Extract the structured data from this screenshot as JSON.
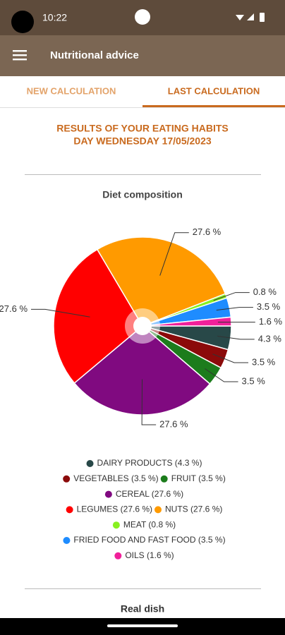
{
  "status_bar": {
    "time": "10:22"
  },
  "app_bar": {
    "title": "Nutritional advice"
  },
  "tabs": [
    "NEW CALCULATION",
    "LAST CALCULATION"
  ],
  "heading": [
    "RESULTS OF YOUR EATING HABITS",
    "DAY WEDNESDAY 17/05/2023"
  ],
  "chart_data": {
    "type": "pie",
    "title": "Diet composition",
    "categories": [
      "DAIRY PRODUCTS (4.3 %)",
      "VEGETABLES (3.5 %)",
      "FRUIT (3.5 %)",
      "CEREAL (27.6 %)",
      "LEGUMES (27.6 %)",
      "NUTS (27.6 %)",
      "MEAT (0.8 %)",
      "FRIED FOOD AND FAST FOOD (3.5 %)",
      "OILS (1.6 %)"
    ],
    "values": [
      4.3,
      3.5,
      3.5,
      27.6,
      27.6,
      27.6,
      0.8,
      3.5,
      1.6
    ],
    "value_labels": [
      "4.3 %",
      "3.5 %",
      "3.5 %",
      "27.6 %",
      "27.6 %",
      "27.6 %",
      "0.8 %",
      "3.5 %",
      "1.6 %"
    ],
    "colors": [
      "#284848",
      "#8b0a0a",
      "#1c7c1c",
      "#800a80",
      "#ff0000",
      "#ff9a00",
      "#88f020",
      "#1e8cff",
      "#f0209a"
    ]
  },
  "footer": {
    "section_title": "Real dish"
  }
}
